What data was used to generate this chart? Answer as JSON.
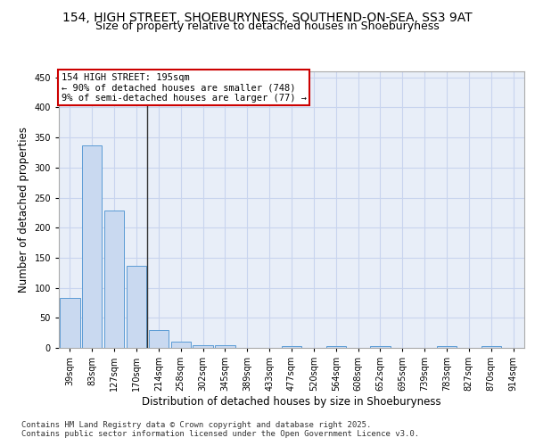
{
  "title_line1": "154, HIGH STREET, SHOEBURYNESS, SOUTHEND-ON-SEA, SS3 9AT",
  "title_line2": "Size of property relative to detached houses in Shoeburyness",
  "xlabel": "Distribution of detached houses by size in Shoeburyness",
  "ylabel": "Number of detached properties",
  "categories": [
    "39sqm",
    "83sqm",
    "127sqm",
    "170sqm",
    "214sqm",
    "258sqm",
    "302sqm",
    "345sqm",
    "389sqm",
    "433sqm",
    "477sqm",
    "520sqm",
    "564sqm",
    "608sqm",
    "652sqm",
    "695sqm",
    "739sqm",
    "783sqm",
    "827sqm",
    "870sqm",
    "914sqm"
  ],
  "values": [
    83,
    337,
    229,
    137,
    30,
    10,
    5,
    5,
    0,
    0,
    3,
    0,
    3,
    0,
    3,
    0,
    0,
    3,
    0,
    3,
    0
  ],
  "bar_color": "#c9d9f0",
  "bar_edge_color": "#5b9bd5",
  "vline_x": 3.5,
  "vline_color": "#333333",
  "annotation_line1": "154 HIGH STREET: 195sqm",
  "annotation_line2": "← 90% of detached houses are smaller (748)",
  "annotation_line3": "9% of semi-detached houses are larger (77) →",
  "annotation_box_color": "#ffffff",
  "annotation_box_edge": "#cc0000",
  "ylim": [
    0,
    460
  ],
  "yticks": [
    0,
    50,
    100,
    150,
    200,
    250,
    300,
    350,
    400,
    450
  ],
  "grid_color": "#c8d4ee",
  "background_color": "#e8eef8",
  "footer_line1": "Contains HM Land Registry data © Crown copyright and database right 2025.",
  "footer_line2": "Contains public sector information licensed under the Open Government Licence v3.0.",
  "title_fontsize": 10,
  "subtitle_fontsize": 9,
  "axis_label_fontsize": 8.5,
  "tick_fontsize": 7,
  "annotation_fontsize": 7.5,
  "footer_fontsize": 6.5
}
